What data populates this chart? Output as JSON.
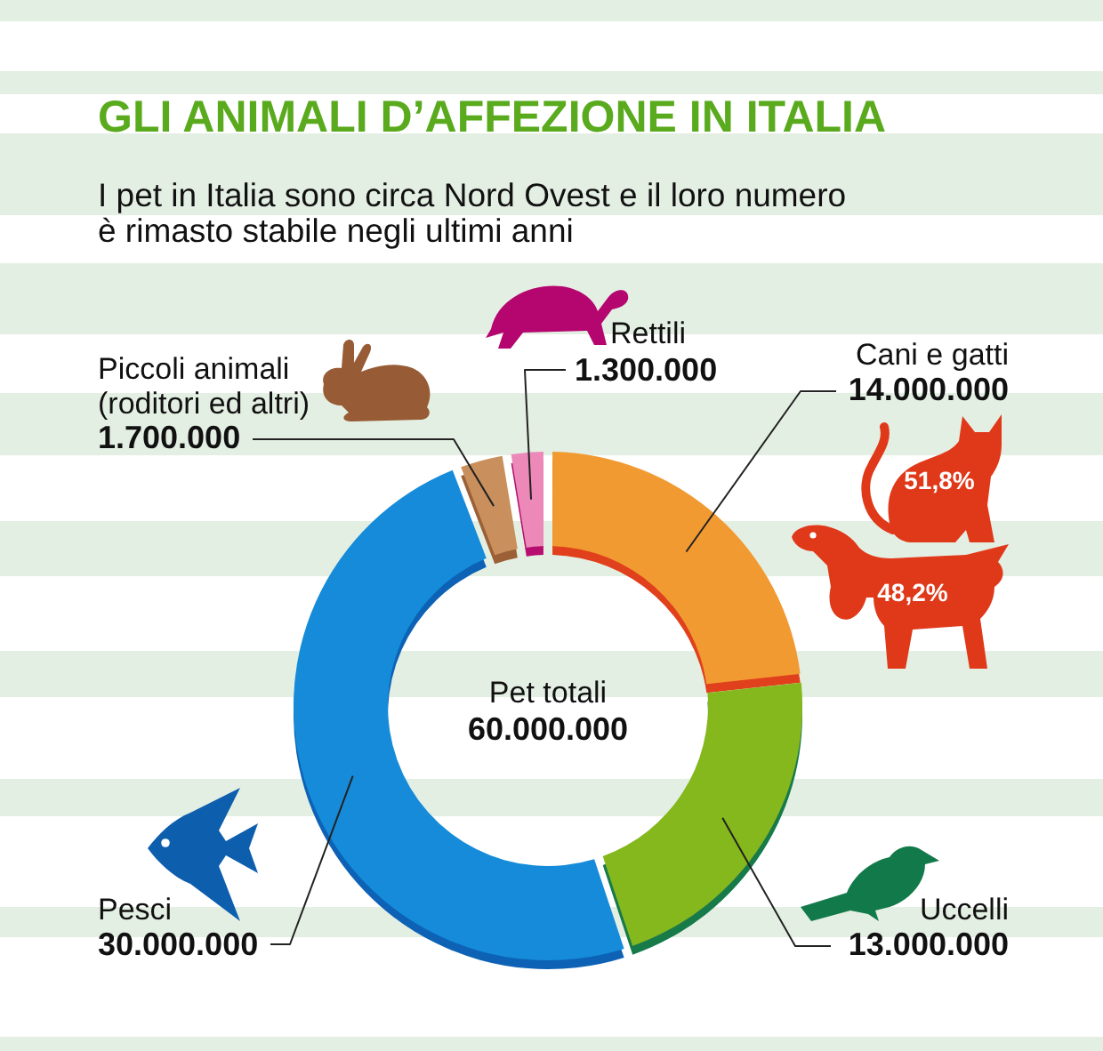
{
  "chart_data": {
    "type": "donut",
    "title": "GLI ANIMALI D’AFFEZIONE IN ITALIA",
    "subtitle": "I pet in Italia sono circa Nord Ovest e il loro numero\nè rimasto stabile negli ultimi anni",
    "categories": [
      "Cani e gatti",
      "Uccelli",
      "Pesci",
      "Piccoli animali\n(roditori ed altri)",
      "Rettili"
    ],
    "values": [
      14000000,
      13000000,
      30000000,
      1700000,
      1300000
    ],
    "value_labels": [
      "14.000.000",
      "13.000.000",
      "30.000.000",
      "1.700.000",
      "1.300.000"
    ],
    "colors": [
      "#f29a32",
      "#84b81c",
      "#138bd9",
      "#c98f5c",
      "#ec89b9"
    ],
    "annotations": [
      "Pet totali",
      "60.000.000",
      "51,8%",
      "48,2%"
    ]
  }
}
